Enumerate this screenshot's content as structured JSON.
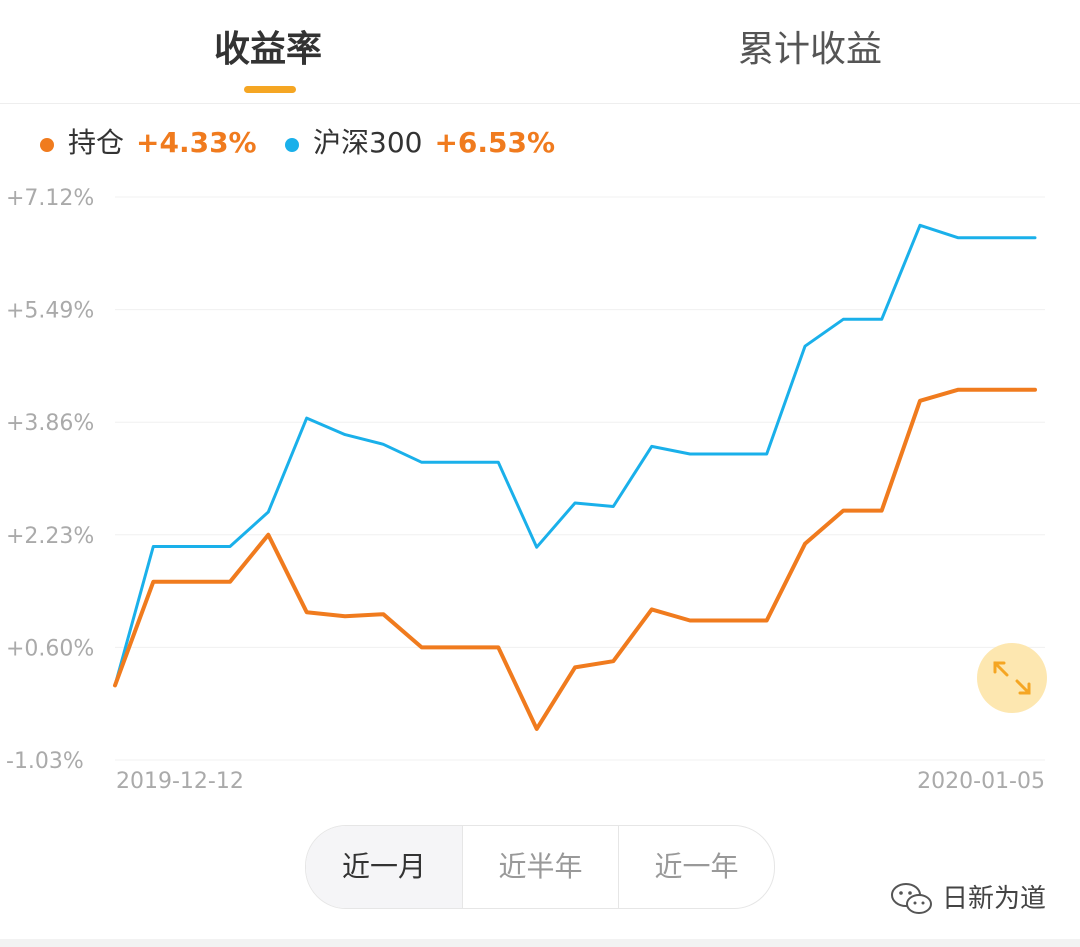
{
  "tabs": {
    "active_label": "收益率",
    "inactive_label": "累计收益"
  },
  "legend": [
    {
      "name": "持仓",
      "value": "+4.33%",
      "color": "#f07b1e"
    },
    {
      "name": "沪深300",
      "value": "+6.53%",
      "color": "#1ab0ea"
    }
  ],
  "range_tabs": {
    "items": [
      "近一月",
      "近半年",
      "近一年"
    ],
    "selected": "近一月"
  },
  "watermark": {
    "text": "日新为道",
    "icon": "wechat-icon"
  },
  "expand_icon": "expand-arrows-icon",
  "colors": {
    "accent": "#f5a623",
    "positive": "#f07b1e",
    "holding": "#f07b1e",
    "index": "#1ab0ea"
  },
  "chart_data": {
    "type": "line",
    "x_start_label": "2019-12-12",
    "x_end_label": "2020-01-05",
    "y_ticks": [
      7.12,
      5.49,
      3.86,
      2.23,
      0.6,
      -1.03
    ],
    "y_tick_labels": [
      "+7.12%",
      "+5.49%",
      "+3.86%",
      "+2.23%",
      "+0.60%",
      "-1.03%"
    ],
    "ylim": [
      -1.03,
      7.12
    ],
    "grid": true,
    "legend_position": "top-left",
    "series": [
      {
        "name": "持仓",
        "color": "#f07b1e",
        "values": [
          0.05,
          1.55,
          1.55,
          1.55,
          2.23,
          1.11,
          1.05,
          1.08,
          0.6,
          0.6,
          0.6,
          -0.58,
          0.31,
          0.4,
          1.15,
          0.99,
          0.99,
          0.99,
          2.1,
          2.58,
          2.58,
          4.17,
          4.33,
          4.33,
          4.33
        ]
      },
      {
        "name": "沪深300",
        "color": "#1ab0ea",
        "values": [
          0.05,
          2.06,
          2.06,
          2.06,
          2.56,
          3.92,
          3.68,
          3.54,
          3.28,
          3.28,
          3.28,
          2.05,
          2.69,
          2.64,
          3.51,
          3.4,
          3.4,
          3.4,
          4.96,
          5.35,
          5.35,
          6.71,
          6.53,
          6.53,
          6.53
        ]
      }
    ]
  }
}
